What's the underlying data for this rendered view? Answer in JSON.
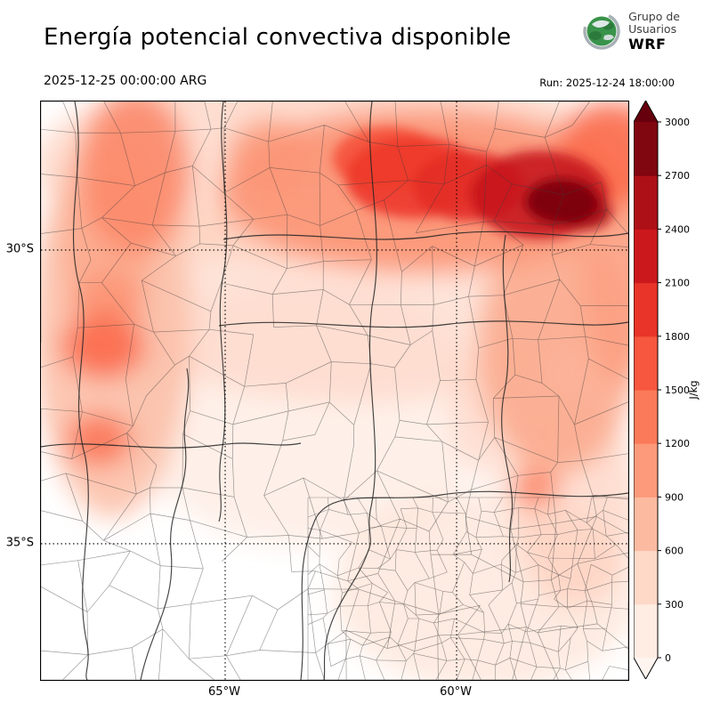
{
  "header": {
    "title": "Energía potencial convectiva disponible",
    "valid_time": "2025-12-25 00:00:00 ARG",
    "run_label": "Run: 2025-12-24 18:00:00",
    "logo": {
      "line1": "Grupo de",
      "line2": "Usuarios",
      "line3": "WRF"
    }
  },
  "axes": {
    "y_ticks": [
      {
        "label": "30°S",
        "lat": -30
      },
      {
        "label": "35°S",
        "lat": -35
      }
    ],
    "x_ticks": [
      {
        "label": "65°W",
        "lon": -65
      },
      {
        "label": "60°W",
        "lon": -60
      }
    ]
  },
  "colorbar": {
    "unit": "J/kg",
    "min": 0,
    "max": 3000,
    "step": 300,
    "ticks": [
      0,
      300,
      600,
      900,
      1200,
      1500,
      1800,
      2100,
      2400,
      2700,
      3000
    ],
    "extend": "both"
  },
  "chart_data": {
    "type": "heatmap",
    "title": "Energía potencial convectiva disponible",
    "variable": "CAPE",
    "units": "J/kg",
    "colormap": "Reds",
    "colormap_stops": [
      [
        0,
        "#fff5f0"
      ],
      [
        375,
        "#fee0d2"
      ],
      [
        750,
        "#fcbba1"
      ],
      [
        1125,
        "#fc9272"
      ],
      [
        1500,
        "#fb6a4a"
      ],
      [
        1875,
        "#ef3b2c"
      ],
      [
        2250,
        "#cb181d"
      ],
      [
        2625,
        "#a50f15"
      ],
      [
        3000,
        "#67000d"
      ]
    ],
    "extent": {
      "lon_min": -68.98,
      "lon_max": -56.29,
      "lat_min": -37.32,
      "lat_max": -27.47
    },
    "gridlines": {
      "lats": [
        -30,
        -35
      ],
      "lons": [
        -65,
        -60
      ]
    },
    "hotspots": [
      {
        "lon": -62.63,
        "lat": -28.53,
        "rlon": 6.5,
        "rlat": 1.7,
        "cape": 600
      },
      {
        "lon": -60.71,
        "lat": -28.99,
        "rlon": 4.4,
        "rlat": 1.4,
        "cape": 1100
      },
      {
        "lon": -60.9,
        "lat": -28.76,
        "rlon": 1.5,
        "rlat": 0.7,
        "cape": 1900
      },
      {
        "lon": -61.48,
        "lat": -28.45,
        "rlon": 1.2,
        "rlat": 0.55,
        "cape": 1700
      },
      {
        "lon": -59.75,
        "lat": -28.91,
        "rlon": 1.2,
        "rlat": 0.6,
        "cape": 2000
      },
      {
        "lon": -58.21,
        "lat": -29.06,
        "rlon": 1.5,
        "rlat": 0.75,
        "cape": 2300
      },
      {
        "lon": -57.73,
        "lat": -29.17,
        "rlon": 0.8,
        "rlat": 0.4,
        "cape": 2900
      },
      {
        "lon": -57.25,
        "lat": -29.36,
        "rlon": 0.6,
        "rlat": 0.3,
        "cape": 2600
      },
      {
        "lon": -56.67,
        "lat": -28.38,
        "rlon": 1.2,
        "rlat": 0.9,
        "cape": 1500
      },
      {
        "lon": -66.96,
        "lat": -28.68,
        "rlon": 1.2,
        "rlat": 1.4,
        "cape": 1200
      },
      {
        "lon": -67.54,
        "lat": -29.89,
        "rlon": 1.0,
        "rlat": 1.2,
        "cape": 900
      },
      {
        "lon": -67.63,
        "lat": -31.64,
        "rlon": 0.9,
        "rlat": 0.55,
        "cape": 1500
      },
      {
        "lon": -67.73,
        "lat": -33.23,
        "rlon": 0.7,
        "rlat": 0.45,
        "cape": 1400
      },
      {
        "lon": -67.44,
        "lat": -31.26,
        "rlon": 1.7,
        "rlat": 3.3,
        "cape": 700
      },
      {
        "lon": -62.25,
        "lat": -30.8,
        "rlon": 5.4,
        "rlat": 1.8,
        "cape": 500
      },
      {
        "lon": -57.83,
        "lat": -31.71,
        "rlon": 1.7,
        "rlat": 2.1,
        "cape": 900
      },
      {
        "lon": -57.44,
        "lat": -34.29,
        "rlon": 1.35,
        "rlat": 1.8,
        "cape": 600
      },
      {
        "lon": -58.31,
        "lat": -34.06,
        "rlon": 0.5,
        "rlat": 0.3,
        "cape": 1300
      },
      {
        "lon": -59.37,
        "lat": -35.8,
        "rlon": 3.3,
        "rlat": 1.7,
        "cape": 400
      },
      {
        "lon": -63.21,
        "lat": -32.77,
        "rlon": 3.9,
        "rlat": 2.3,
        "cape": 250
      },
      {
        "lon": -56.48,
        "lat": -30.5,
        "rlon": 0.8,
        "rlat": 1.8,
        "cape": 1000
      },
      {
        "lon": -58.98,
        "lat": -32.77,
        "rlon": 1.15,
        "rlat": 1.2,
        "cape": 500
      },
      {
        "lon": -63.98,
        "lat": -28.38,
        "rlon": 0.96,
        "rlat": 0.61,
        "cape": 1000
      },
      {
        "lon": -67.54,
        "lat": -30.88,
        "rlon": 0.8,
        "rlat": 0.5,
        "cape": 1100
      }
    ]
  }
}
